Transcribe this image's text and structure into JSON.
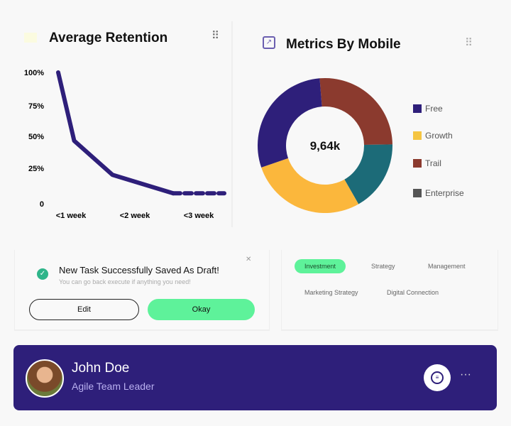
{
  "retention": {
    "title": "Average Retention",
    "drag_icon": "grip-dots-icon",
    "chart_data": {
      "type": "line",
      "title": "Average Retention",
      "y_ticks": [
        "100%",
        "75%",
        "50%",
        "25%",
        "0"
      ],
      "x_ticks": [
        "<1 week",
        "<2 week",
        "<3 week"
      ],
      "x_units": "weeks",
      "ylim": [
        0,
        100
      ],
      "solid": [
        [
          0.8,
          100
        ],
        [
          1.05,
          48
        ],
        [
          1.65,
          22
        ],
        [
          2.6,
          8
        ]
      ],
      "dashed": [
        [
          2.6,
          8
        ],
        [
          3.4,
          8
        ]
      ],
      "color": "#2e1f7a",
      "grid": false
    }
  },
  "metrics": {
    "title": "Metrics By Mobile",
    "icon": "chart-icon",
    "drag_icon": "grip-dots-icon",
    "chart_data": {
      "type": "pie",
      "donut": true,
      "center_label": "9,64k",
      "slices": [
        {
          "color": "#8b3a2e",
          "value": 26
        },
        {
          "color": "#1c6b78",
          "value": 17
        },
        {
          "color": "#fbb73c",
          "value": 28
        },
        {
          "color": "#2e1f7a",
          "value": 29
        }
      ],
      "legend": [
        {
          "name": "Free",
          "color": "#2e1f7a"
        },
        {
          "name": "Growth",
          "color": "#f5c542"
        },
        {
          "name": "Trail",
          "color": "#8b3a2e"
        },
        {
          "name": "Enterprise",
          "color": "#555555"
        }
      ],
      "legend_placement": "right"
    }
  },
  "toast": {
    "title": "New Task Successfully Saved As Draft!",
    "message": "You can go back execute if anything you need!",
    "edit": "Edit",
    "okay": "Okay",
    "accent": "#5ef29a"
  },
  "tags": [
    "Investment",
    "Strategy",
    "Management",
    "Marketing Strategy",
    "Digital Connection"
  ],
  "profile": {
    "name": "John Doe",
    "role": "Agile Team Leader",
    "bg": "#2e1f7a"
  }
}
